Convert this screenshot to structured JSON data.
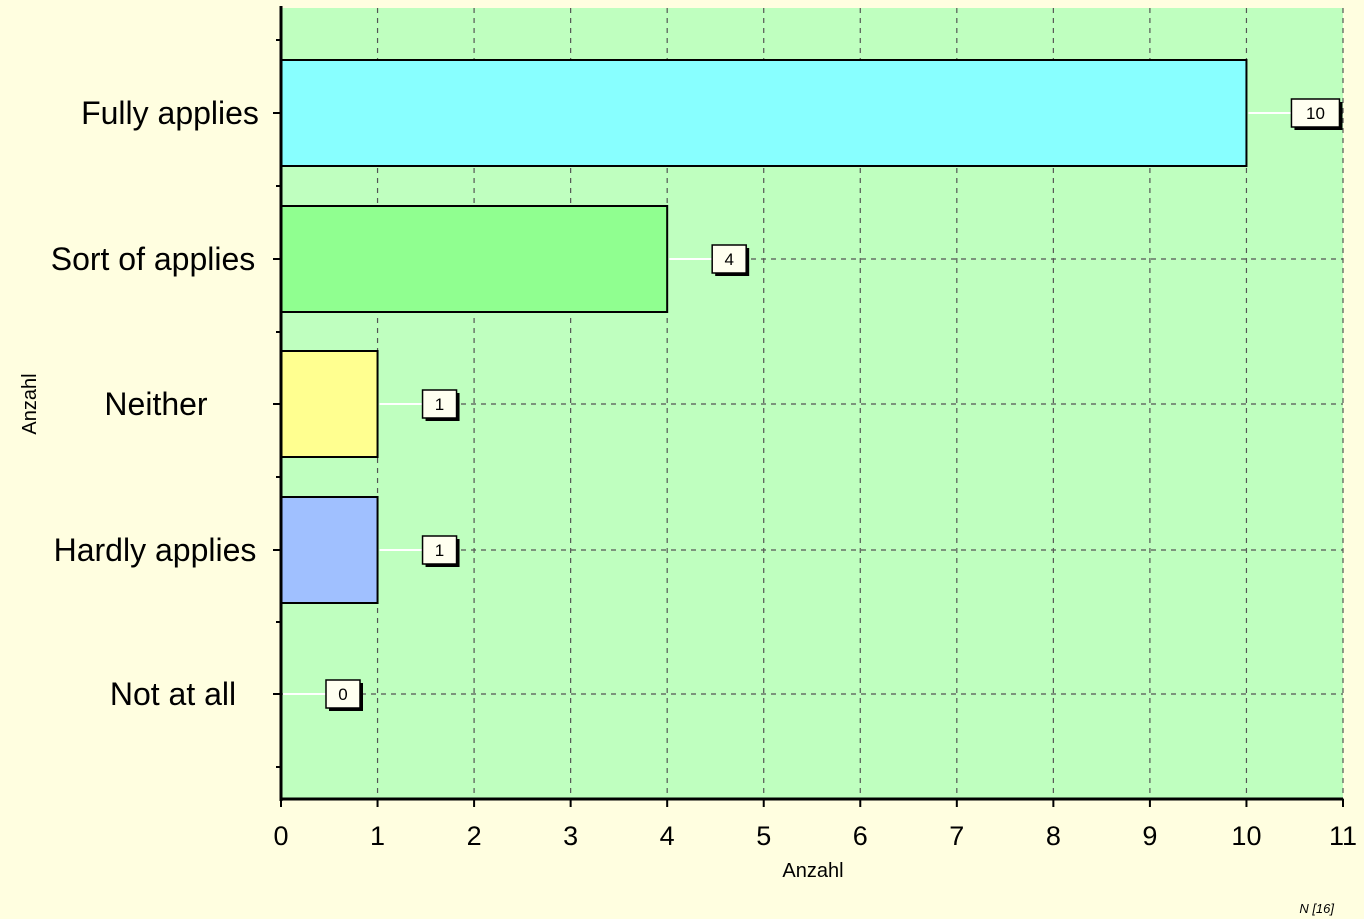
{
  "chart_data": {
    "type": "bar",
    "orientation": "horizontal",
    "categories": [
      "Fully applies",
      "Sort of applies",
      "Neither",
      "Hardly applies",
      "Not at all"
    ],
    "values": [
      10,
      4,
      1,
      1,
      0
    ],
    "data_labels": [
      "10",
      "4",
      "1",
      "1",
      "0"
    ],
    "bar_colors": [
      "#88ffff",
      "#90ff90",
      "#ffff90",
      "#a0c0ff",
      "#c0c0c0"
    ],
    "title": "",
    "xlabel": "Anzahl",
    "ylabel": "Anzahl",
    "xlim": [
      0,
      11
    ],
    "x_ticks": [
      "0",
      "1",
      "2",
      "3",
      "4",
      "5",
      "6",
      "7",
      "8",
      "9",
      "10",
      "11"
    ],
    "grid": true,
    "legend": "none"
  },
  "footnote": "N [16]",
  "colors": {
    "page_background": "#fffee0",
    "plot_background": "#bfffbf",
    "grid_line": "#555555",
    "axis_line": "#000000"
  }
}
